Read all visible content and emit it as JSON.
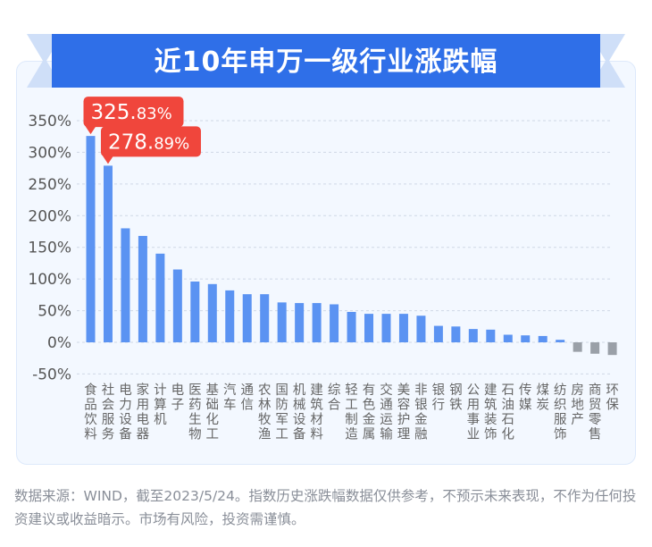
{
  "title": "近10年申万一级行业涨跌幅",
  "footnote": "数据来源：WIND，截至2023/5/24。指数历史涨跌幅数据仅供参考，不预示未来表现，不作为任何投资建议或收益暗示。市场有风险，投资需谨慎。",
  "colors": {
    "bar_positive": "#5b93f2",
    "bar_negative": "#9aa0a8",
    "callout": "#f0463c",
    "banner": "#2f6fe8",
    "banner_light": "#dce8fb"
  },
  "chart_data": {
    "type": "bar",
    "title": "近10年申万一级行业涨跌幅",
    "xlabel": "",
    "ylabel": "",
    "ylim": [
      -50,
      350
    ],
    "yticks": [
      "-50%",
      "0%",
      "50%",
      "100%",
      "150%",
      "200%",
      "250%",
      "300%",
      "350%"
    ],
    "grid": true,
    "legend": "none",
    "categories": [
      "食品饮料",
      "社会服务",
      "电力设备",
      "家用电器",
      "计算机",
      "电子",
      "医药生物",
      "基础化工",
      "汽车",
      "通信",
      "农林牧渔",
      "国防军工",
      "机械设备",
      "建筑材料",
      "综合",
      "轻工制造",
      "有色金属",
      "交通运输",
      "美容护理",
      "非银金融",
      "银行",
      "钢铁",
      "公用事业",
      "建筑装饰",
      "石油石化",
      "传媒",
      "煤炭",
      "纺织服饰",
      "房地产",
      "商贸零售",
      "环保"
    ],
    "values": [
      325.83,
      278.89,
      180,
      168,
      140,
      115,
      96,
      92,
      82,
      76,
      76,
      63,
      62,
      62,
      60,
      48,
      45,
      45,
      45,
      42,
      26,
      25,
      21,
      20,
      12,
      11,
      10,
      4,
      -15,
      -18,
      -20
    ],
    "callouts": [
      {
        "main": "325.",
        "small": "83%"
      },
      {
        "main": "278.",
        "small": "89%"
      }
    ]
  }
}
